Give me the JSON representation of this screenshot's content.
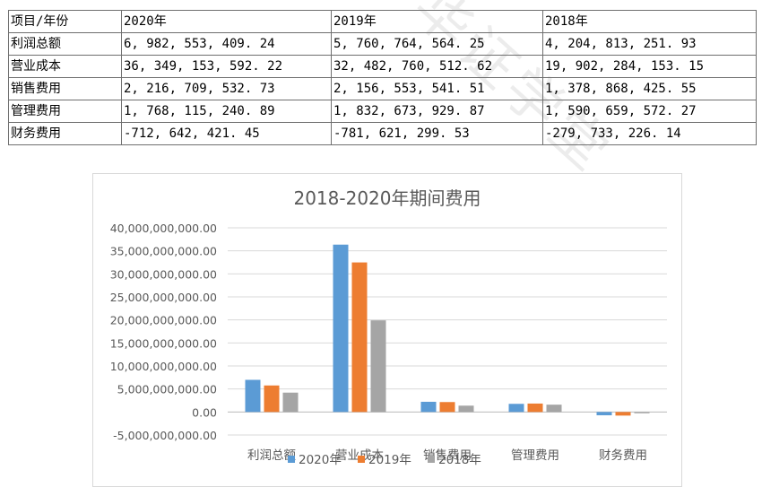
{
  "table": {
    "header": [
      "项目/年份",
      "2020年",
      "2019年",
      "2018年"
    ],
    "rows": [
      [
        "利润总额",
        "6, 982, 553, 409. 24",
        "5, 760, 764, 564. 25",
        "4, 204, 813, 251. 93"
      ],
      [
        "营业成本",
        "36, 349, 153, 592. 22",
        "32, 482, 760, 512. 62",
        "19, 902, 284, 153. 15"
      ],
      [
        "销售费用",
        "2, 216, 709, 532. 73",
        "2, 156, 553, 541. 51",
        "1, 378, 868, 425. 55"
      ],
      [
        "管理费用",
        "1, 768, 115, 240. 89",
        "1, 832, 673, 929. 87",
        "1, 590, 659, 572. 27"
      ],
      [
        "财务费用",
        "-712, 642, 421. 45",
        "-781, 621, 299. 53",
        "-279, 733, 226. 14"
      ]
    ]
  },
  "watermark": "华证学堂",
  "chart_data": {
    "type": "bar",
    "title": "2018-2020年期间费用",
    "categories": [
      "利润总额",
      "营业成本",
      "销售费用",
      "管理费用",
      "财务费用"
    ],
    "series": [
      {
        "name": "2020年",
        "color": "#5b9bd5",
        "values": [
          6982553409.24,
          36349153592.22,
          2216709532.73,
          1768115240.89,
          -712642421.45
        ]
      },
      {
        "name": "2019年",
        "color": "#ed7d31",
        "values": [
          5760764564.25,
          32482760512.62,
          2156553541.51,
          1832673929.87,
          -781621299.53
        ]
      },
      {
        "name": "2018年",
        "color": "#a5a5a5",
        "values": [
          4204813251.93,
          19902284153.15,
          1378868425.55,
          1590659572.27,
          -279733226.14
        ]
      }
    ],
    "ylim": [
      -5000000000,
      40000000000
    ],
    "yticks": [
      -5000000000,
      0,
      5000000000,
      10000000000,
      15000000000,
      20000000000,
      25000000000,
      30000000000,
      35000000000,
      40000000000
    ],
    "ytick_labels": [
      "-5,000,000,000.00",
      "0.00",
      "5,000,000,000.00",
      "10,000,000,000.00",
      "15,000,000,000.00",
      "20,000,000,000.00",
      "25,000,000,000.00",
      "30,000,000,000.00",
      "35,000,000,000.00",
      "40,000,000,000.00"
    ],
    "grid": true,
    "legend": "bottom",
    "xlabel": "",
    "ylabel": ""
  }
}
